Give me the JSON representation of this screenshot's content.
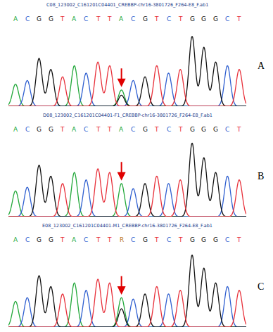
{
  "chart_data": [
    {
      "type": "line",
      "title": "C08_123002_C161201C04401_CREBBP-chr16-3801726_F264-E8_F.ab1",
      "panel_label": "A",
      "bases": [
        "A",
        "C",
        "G",
        "G",
        "T",
        "A",
        "C",
        "T",
        "T",
        "A",
        "C",
        "G",
        "T",
        "C",
        "T",
        "G",
        "G",
        "G",
        "C",
        "T"
      ],
      "arrow_at": 9,
      "xlim": [
        -0.6,
        19.6
      ],
      "ylim": [
        0,
        110
      ],
      "tick_labels": false,
      "grid": false,
      "series": [
        {
          "name": "A",
          "color": "#22a83a",
          "peaks": [
            [
              0,
              30
            ],
            [
              5,
              55
            ],
            [
              9,
              22
            ]
          ]
        },
        {
          "name": "C",
          "color": "#2f5fd0",
          "peaks": [
            [
              1,
              35
            ],
            [
              6,
              45
            ],
            [
              10,
              35
            ],
            [
              13,
              45
            ],
            [
              18,
              55
            ]
          ]
        },
        {
          "name": "G",
          "color": "#111111",
          "peaks": [
            [
              2,
              65
            ],
            [
              3,
              50
            ],
            [
              9,
              15
            ],
            [
              11,
              40
            ],
            [
              15,
              95
            ],
            [
              16,
              80
            ],
            [
              17,
              60
            ]
          ]
        },
        {
          "name": "T",
          "color": "#e8303a",
          "peaks": [
            [
              4,
              40
            ],
            [
              7,
              60
            ],
            [
              8,
              55
            ],
            [
              12,
              55
            ],
            [
              14,
              50
            ],
            [
              19,
              50
            ]
          ]
        }
      ]
    },
    {
      "type": "line",
      "title": "D08_123002_C161201C04401-F1_CREBBP-chr16-3801726_F264-E8_F.ab1",
      "panel_label": "B",
      "bases": [
        "A",
        "C",
        "G",
        "G",
        "T",
        "A",
        "C",
        "T",
        "T",
        "A",
        "C",
        "G",
        "T",
        "C",
        "T",
        "G",
        "G",
        "G",
        "C",
        "T"
      ],
      "arrow_at": 9,
      "xlim": [
        -0.6,
        19.6
      ],
      "ylim": [
        0,
        110
      ],
      "tick_labels": false,
      "grid": false,
      "series": [
        {
          "name": "A",
          "color": "#22a83a",
          "peaks": [
            [
              0,
              35
            ],
            [
              5,
              60
            ],
            [
              9,
              45
            ]
          ]
        },
        {
          "name": "C",
          "color": "#2f5fd0",
          "peaks": [
            [
              1,
              40
            ],
            [
              6,
              50
            ],
            [
              10,
              38
            ],
            [
              13,
              45
            ],
            [
              18,
              55
            ]
          ]
        },
        {
          "name": "G",
          "color": "#111111",
          "peaks": [
            [
              2,
              70
            ],
            [
              3,
              55
            ],
            [
              11,
              45
            ],
            [
              15,
              100
            ],
            [
              16,
              80
            ],
            [
              17,
              60
            ]
          ]
        },
        {
          "name": "T",
          "color": "#e8303a",
          "peaks": [
            [
              4,
              45
            ],
            [
              7,
              65
            ],
            [
              8,
              60
            ],
            [
              12,
              55
            ],
            [
              14,
              50
            ],
            [
              19,
              50
            ]
          ]
        }
      ]
    },
    {
      "type": "line",
      "title": "E08_123002_C161201C04401-M1_CREBBP-chr16-3801726_F264-E8_F.ab1",
      "panel_label": "C",
      "bases": [
        "A",
        "C",
        "G",
        "G",
        "T",
        "A",
        "C",
        "T",
        "T",
        "R",
        "C",
        "G",
        "T",
        "C",
        "T",
        "G",
        "G",
        "G",
        "C",
        "T"
      ],
      "arrow_at": 9,
      "xlim": [
        -0.6,
        19.6
      ],
      "ylim": [
        0,
        110
      ],
      "tick_labels": false,
      "grid": false,
      "series": [
        {
          "name": "A",
          "color": "#22a83a",
          "peaks": [
            [
              0,
              35
            ],
            [
              5,
              60
            ],
            [
              9,
              40
            ]
          ]
        },
        {
          "name": "C",
          "color": "#2f5fd0",
          "peaks": [
            [
              1,
              40
            ],
            [
              6,
              50
            ],
            [
              10,
              38
            ],
            [
              13,
              45
            ],
            [
              18,
              55
            ]
          ]
        },
        {
          "name": "G",
          "color": "#111111",
          "peaks": [
            [
              2,
              70
            ],
            [
              3,
              55
            ],
            [
              9,
              25
            ],
            [
              11,
              45
            ],
            [
              15,
              98
            ],
            [
              16,
              80
            ],
            [
              17,
              60
            ]
          ]
        },
        {
          "name": "T",
          "color": "#e8303a",
          "peaks": [
            [
              4,
              45
            ],
            [
              7,
              65
            ],
            [
              8,
              60
            ],
            [
              12,
              55
            ],
            [
              14,
              50
            ],
            [
              19,
              50
            ]
          ]
        }
      ]
    }
  ]
}
